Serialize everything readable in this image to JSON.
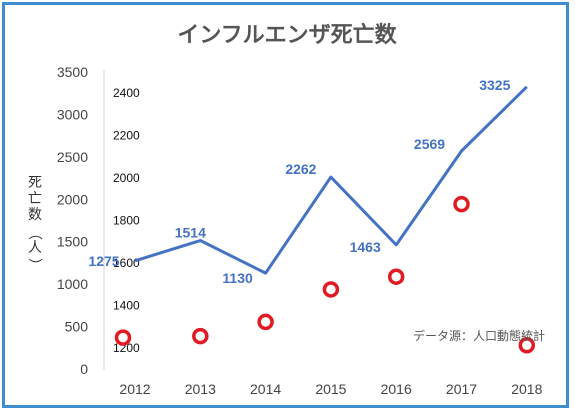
{
  "chart_data": {
    "type": "line",
    "title": "インフルエンザ死亡数",
    "ylabel_chars": [
      "死",
      "亡",
      "数",
      "（",
      "人",
      "）"
    ],
    "source": "データ源：人口動態統計",
    "categories": [
      "2012",
      "2013",
      "2014",
      "2015",
      "2016",
      "2017",
      "2018"
    ],
    "ylim": [
      0,
      3500
    ],
    "yticks": [
      "0",
      "500",
      "1000",
      "1500",
      "2000",
      "2500",
      "3000",
      "3500"
    ],
    "secondary_ylim": [
      1100,
      2500
    ],
    "secondary_yticks": [
      "1200",
      "1400",
      "1600",
      "1800",
      "2000",
      "2200",
      "2400"
    ],
    "grid": false,
    "series": [
      {
        "values": [
          1275,
          1514,
          1130,
          2262,
          1463,
          2569,
          3325
        ],
        "labels": [
          "1275",
          "1514",
          "1130",
          "2262",
          "1463",
          "2569",
          "3325"
        ],
        "color": "#4472c4"
      },
      {
        "axis": "secondary",
        "values": [
          1248,
          1255,
          1322,
          1475,
          1535,
          1877,
          1212
        ],
        "color": "#e01b24"
      }
    ]
  }
}
